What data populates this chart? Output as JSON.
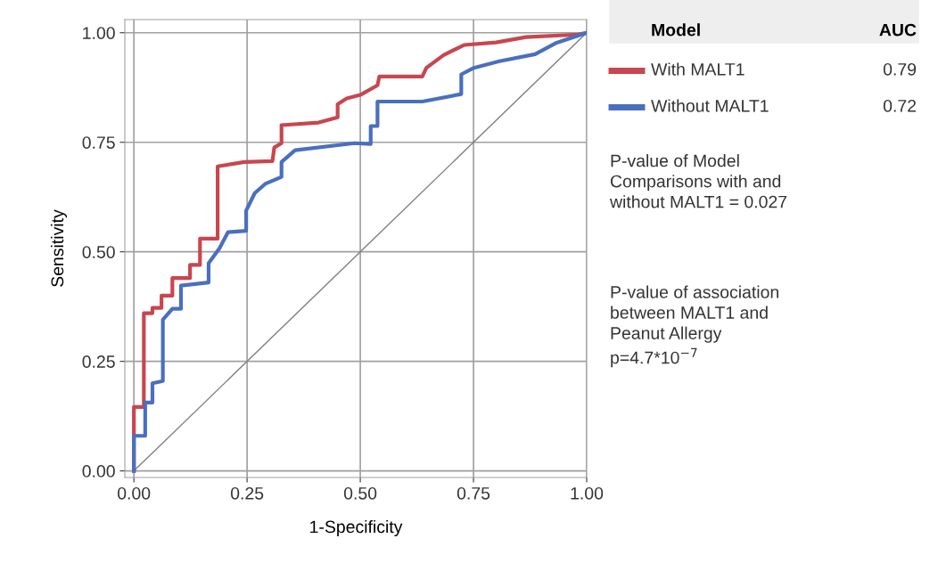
{
  "chart_data": {
    "type": "line",
    "xlabel": "1-Specificity",
    "ylabel": "Sensitivity",
    "xlim": [
      -0.02,
      1.0
    ],
    "ylim": [
      -0.015,
      1.03
    ],
    "xticks": [
      {
        "value": 0,
        "label": "0.00"
      },
      {
        "value": 0.25,
        "label": "0.25"
      },
      {
        "value": 0.5,
        "label": "0.50"
      },
      {
        "value": 0.75,
        "label": "0.75"
      },
      {
        "value": 1,
        "label": "1.00"
      }
    ],
    "yticks": [
      {
        "value": 0,
        "label": "0.00"
      },
      {
        "value": 0.25,
        "label": "0.25"
      },
      {
        "value": 0.5,
        "label": "0.50"
      },
      {
        "value": 0.75,
        "label": "0.75"
      },
      {
        "value": 1,
        "label": "1.00"
      }
    ],
    "grid": true,
    "legend": "top right",
    "legend_title": "Model",
    "marker": "none",
    "series": [
      {
        "name": "With MALT1",
        "color": "#c8464f",
        "x": [
          0,
          0,
          0.022,
          0.022,
          0.041,
          0.041,
          0.061,
          0.061,
          0.085,
          0.085,
          0.124,
          0.124,
          0.146,
          0.146,
          0.185,
          0.185,
          0.244,
          0.306,
          0.31,
          0.326,
          0.326,
          0.408,
          0.45,
          0.45,
          0.47,
          0.5,
          0.538,
          0.542,
          0.637,
          0.646,
          0.684,
          0.729,
          0.8,
          0.866,
          0.98,
          1
        ],
        "values": [
          0,
          0.146,
          0.146,
          0.36,
          0.36,
          0.372,
          0.372,
          0.4,
          0.4,
          0.44,
          0.44,
          0.47,
          0.47,
          0.53,
          0.53,
          0.695,
          0.705,
          0.707,
          0.738,
          0.748,
          0.789,
          0.795,
          0.807,
          0.837,
          0.85,
          0.858,
          0.88,
          0.9,
          0.9,
          0.92,
          0.949,
          0.972,
          0.978,
          0.99,
          0.996,
          1
        ]
      },
      {
        "name": "Without MALT1",
        "color": "#4a6fc0",
        "x": [
          0,
          0,
          0.025,
          0.025,
          0.041,
          0.041,
          0.064,
          0.064,
          0.085,
          0.104,
          0.104,
          0.165,
          0.165,
          0.189,
          0.208,
          0.248,
          0.248,
          0.267,
          0.29,
          0.326,
          0.326,
          0.356,
          0.487,
          0.523,
          0.523,
          0.538,
          0.538,
          0.637,
          0.723,
          0.723,
          0.749,
          0.807,
          0.886,
          0.931,
          1
        ],
        "values": [
          0,
          0.08,
          0.08,
          0.156,
          0.156,
          0.2,
          0.205,
          0.345,
          0.37,
          0.37,
          0.423,
          0.43,
          0.474,
          0.508,
          0.545,
          0.548,
          0.594,
          0.634,
          0.655,
          0.671,
          0.705,
          0.732,
          0.748,
          0.746,
          0.787,
          0.787,
          0.843,
          0.843,
          0.86,
          0.905,
          0.919,
          0.935,
          0.951,
          0.976,
          1
        ]
      },
      {
        "color": "#808080",
        "x": [
          0,
          1
        ],
        "values": [
          0,
          1
        ]
      }
    ],
    "annotations": [
      "AUC",
      "0.79",
      "0.72",
      "P-value of Model\nComparisons with and\nwithout MALT1 = 0.027",
      "P-value of association\nbetween MALT1 and\nPeanut Allergy\np=4.7*10$^{−7}$"
    ]
  }
}
